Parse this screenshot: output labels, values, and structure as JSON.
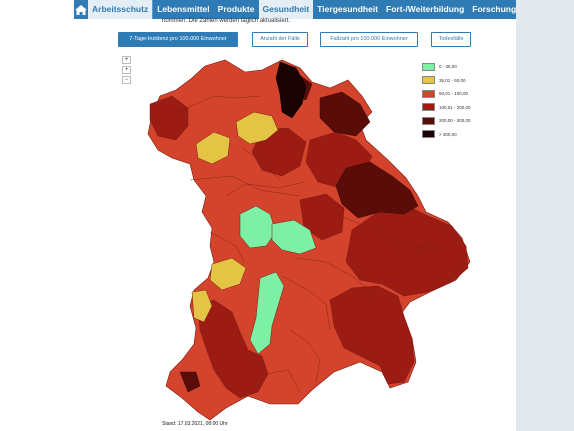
{
  "nav": {
    "items": [
      {
        "label": "Arbeitsschutz",
        "active": true
      },
      {
        "label": "Lebensmittel"
      },
      {
        "label": "Produkte"
      },
      {
        "label": "Gesundheit",
        "active": true
      },
      {
        "label": "Tiergesundheit"
      },
      {
        "label": "Fort-/Weiterbildung"
      },
      {
        "label": "Forschung"
      }
    ]
  },
  "intro_fragment": "nommen. Die Zahlen werden täglich aktualisiert.",
  "buttons": {
    "incidence": "7-Tage-Inzidenz pro 100.000 Einwohner",
    "cases": "Anzahl der Fälle",
    "cases_per_100k": "Fallzahl pro 100.000 Einwohner",
    "deaths": "Todesfälle"
  },
  "zoom": {
    "in": "+",
    "mid": "•",
    "out": "−"
  },
  "legend": [
    {
      "label": "0 - 35,00",
      "color": "#7ef0a6"
    },
    {
      "label": "35,01 - 50,00",
      "color": "#e3c444"
    },
    {
      "label": "50,01 - 100,00",
      "color": "#d4442c"
    },
    {
      "label": "100,01 - 200,00",
      "color": "#9c1c14"
    },
    {
      "label": "200,00 - 300,00",
      "color": "#5a0c08"
    },
    {
      "label": "> 300,00",
      "color": "#1a0202"
    }
  ],
  "stand": "Stand: 17.03.2021, 08:00 Uhr"
}
